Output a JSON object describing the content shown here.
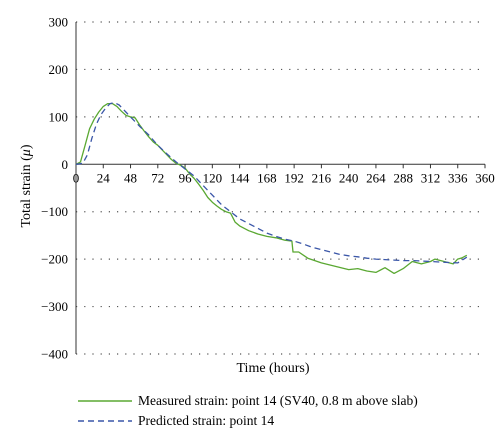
{
  "chart_data": {
    "type": "line",
    "title": "",
    "xlabel": "Time (hours)",
    "ylabel": "Total strain (",
    "ylabel_unit": "μ",
    "ylabel_close": ")",
    "xlim": [
      0,
      360
    ],
    "ylim": [
      -400,
      300
    ],
    "x_ticks": [
      0,
      24,
      48,
      72,
      96,
      120,
      144,
      168,
      192,
      216,
      240,
      264,
      288,
      312,
      336,
      360
    ],
    "y_ticks": [
      300,
      200,
      100,
      0,
      -100,
      -200,
      -300,
      -400
    ],
    "x_tick_labels": [
      "0",
      "24",
      "48",
      "72",
      "96",
      "120",
      "144",
      "168",
      "192",
      "216",
      "240",
      "264",
      "288",
      "312",
      "336",
      "360"
    ],
    "y_tick_labels": [
      "300",
      "200",
      "100",
      "0",
      "−100",
      "−200",
      "−300",
      "−400"
    ],
    "grid": "horizontal-dotted",
    "legend_position": "bottom",
    "series": [
      {
        "name": "Measured strain: point 14 (SV40, 0.8 m above slab)",
        "color": "#5aa832",
        "style": "solid",
        "points": [
          [
            0,
            0
          ],
          [
            4,
            5
          ],
          [
            8,
            40
          ],
          [
            12,
            75
          ],
          [
            16,
            95
          ],
          [
            20,
            110
          ],
          [
            24,
            122
          ],
          [
            28,
            128
          ],
          [
            32,
            128
          ],
          [
            36,
            122
          ],
          [
            40,
            112
          ],
          [
            44,
            103
          ],
          [
            48,
            100
          ],
          [
            52,
            98
          ],
          [
            56,
            83
          ],
          [
            60,
            70
          ],
          [
            64,
            58
          ],
          [
            68,
            47
          ],
          [
            72,
            40
          ],
          [
            76,
            30
          ],
          [
            80,
            20
          ],
          [
            84,
            10
          ],
          [
            88,
            2
          ],
          [
            92,
            -2
          ],
          [
            96,
            -8
          ],
          [
            100,
            -20
          ],
          [
            104,
            -30
          ],
          [
            108,
            -42
          ],
          [
            112,
            -55
          ],
          [
            116,
            -70
          ],
          [
            120,
            -80
          ],
          [
            124,
            -88
          ],
          [
            128,
            -95
          ],
          [
            132,
            -100
          ],
          [
            136,
            -103
          ],
          [
            140,
            -122
          ],
          [
            144,
            -130
          ],
          [
            152,
            -140
          ],
          [
            160,
            -147
          ],
          [
            168,
            -152
          ],
          [
            176,
            -155
          ],
          [
            184,
            -160
          ],
          [
            190,
            -162
          ],
          [
            191,
            -185
          ],
          [
            196,
            -185
          ],
          [
            204,
            -198
          ],
          [
            216,
            -208
          ],
          [
            228,
            -215
          ],
          [
            240,
            -222
          ],
          [
            248,
            -220
          ],
          [
            256,
            -225
          ],
          [
            264,
            -228
          ],
          [
            272,
            -218
          ],
          [
            280,
            -230
          ],
          [
            288,
            -220
          ],
          [
            296,
            -205
          ],
          [
            304,
            -210
          ],
          [
            312,
            -205
          ],
          [
            316,
            -200
          ],
          [
            324,
            -205
          ],
          [
            332,
            -210
          ],
          [
            336,
            -200
          ],
          [
            340,
            -197
          ],
          [
            344,
            -192
          ]
        ]
      },
      {
        "name": "Predicted strain: point 14",
        "color": "#3a56a8",
        "style": "dashed",
        "points": [
          [
            0,
            0
          ],
          [
            6,
            2
          ],
          [
            10,
            20
          ],
          [
            14,
            55
          ],
          [
            18,
            85
          ],
          [
            22,
            105
          ],
          [
            26,
            118
          ],
          [
            30,
            128
          ],
          [
            34,
            130
          ],
          [
            38,
            125
          ],
          [
            42,
            115
          ],
          [
            48,
            100
          ],
          [
            56,
            80
          ],
          [
            64,
            62
          ],
          [
            72,
            40
          ],
          [
            80,
            22
          ],
          [
            88,
            5
          ],
          [
            96,
            -10
          ],
          [
            104,
            -25
          ],
          [
            112,
            -45
          ],
          [
            120,
            -65
          ],
          [
            128,
            -85
          ],
          [
            136,
            -100
          ],
          [
            144,
            -115
          ],
          [
            152,
            -125
          ],
          [
            160,
            -135
          ],
          [
            168,
            -145
          ],
          [
            176,
            -152
          ],
          [
            184,
            -158
          ],
          [
            192,
            -162
          ],
          [
            200,
            -168
          ],
          [
            208,
            -175
          ],
          [
            216,
            -180
          ],
          [
            224,
            -185
          ],
          [
            232,
            -190
          ],
          [
            240,
            -193
          ],
          [
            248,
            -195
          ],
          [
            256,
            -198
          ],
          [
            264,
            -200
          ],
          [
            272,
            -201
          ],
          [
            280,
            -202
          ],
          [
            288,
            -203
          ],
          [
            296,
            -203
          ],
          [
            304,
            -204
          ],
          [
            312,
            -205
          ],
          [
            320,
            -206
          ],
          [
            328,
            -207
          ],
          [
            336,
            -208
          ],
          [
            344,
            -196
          ]
        ]
      }
    ]
  }
}
